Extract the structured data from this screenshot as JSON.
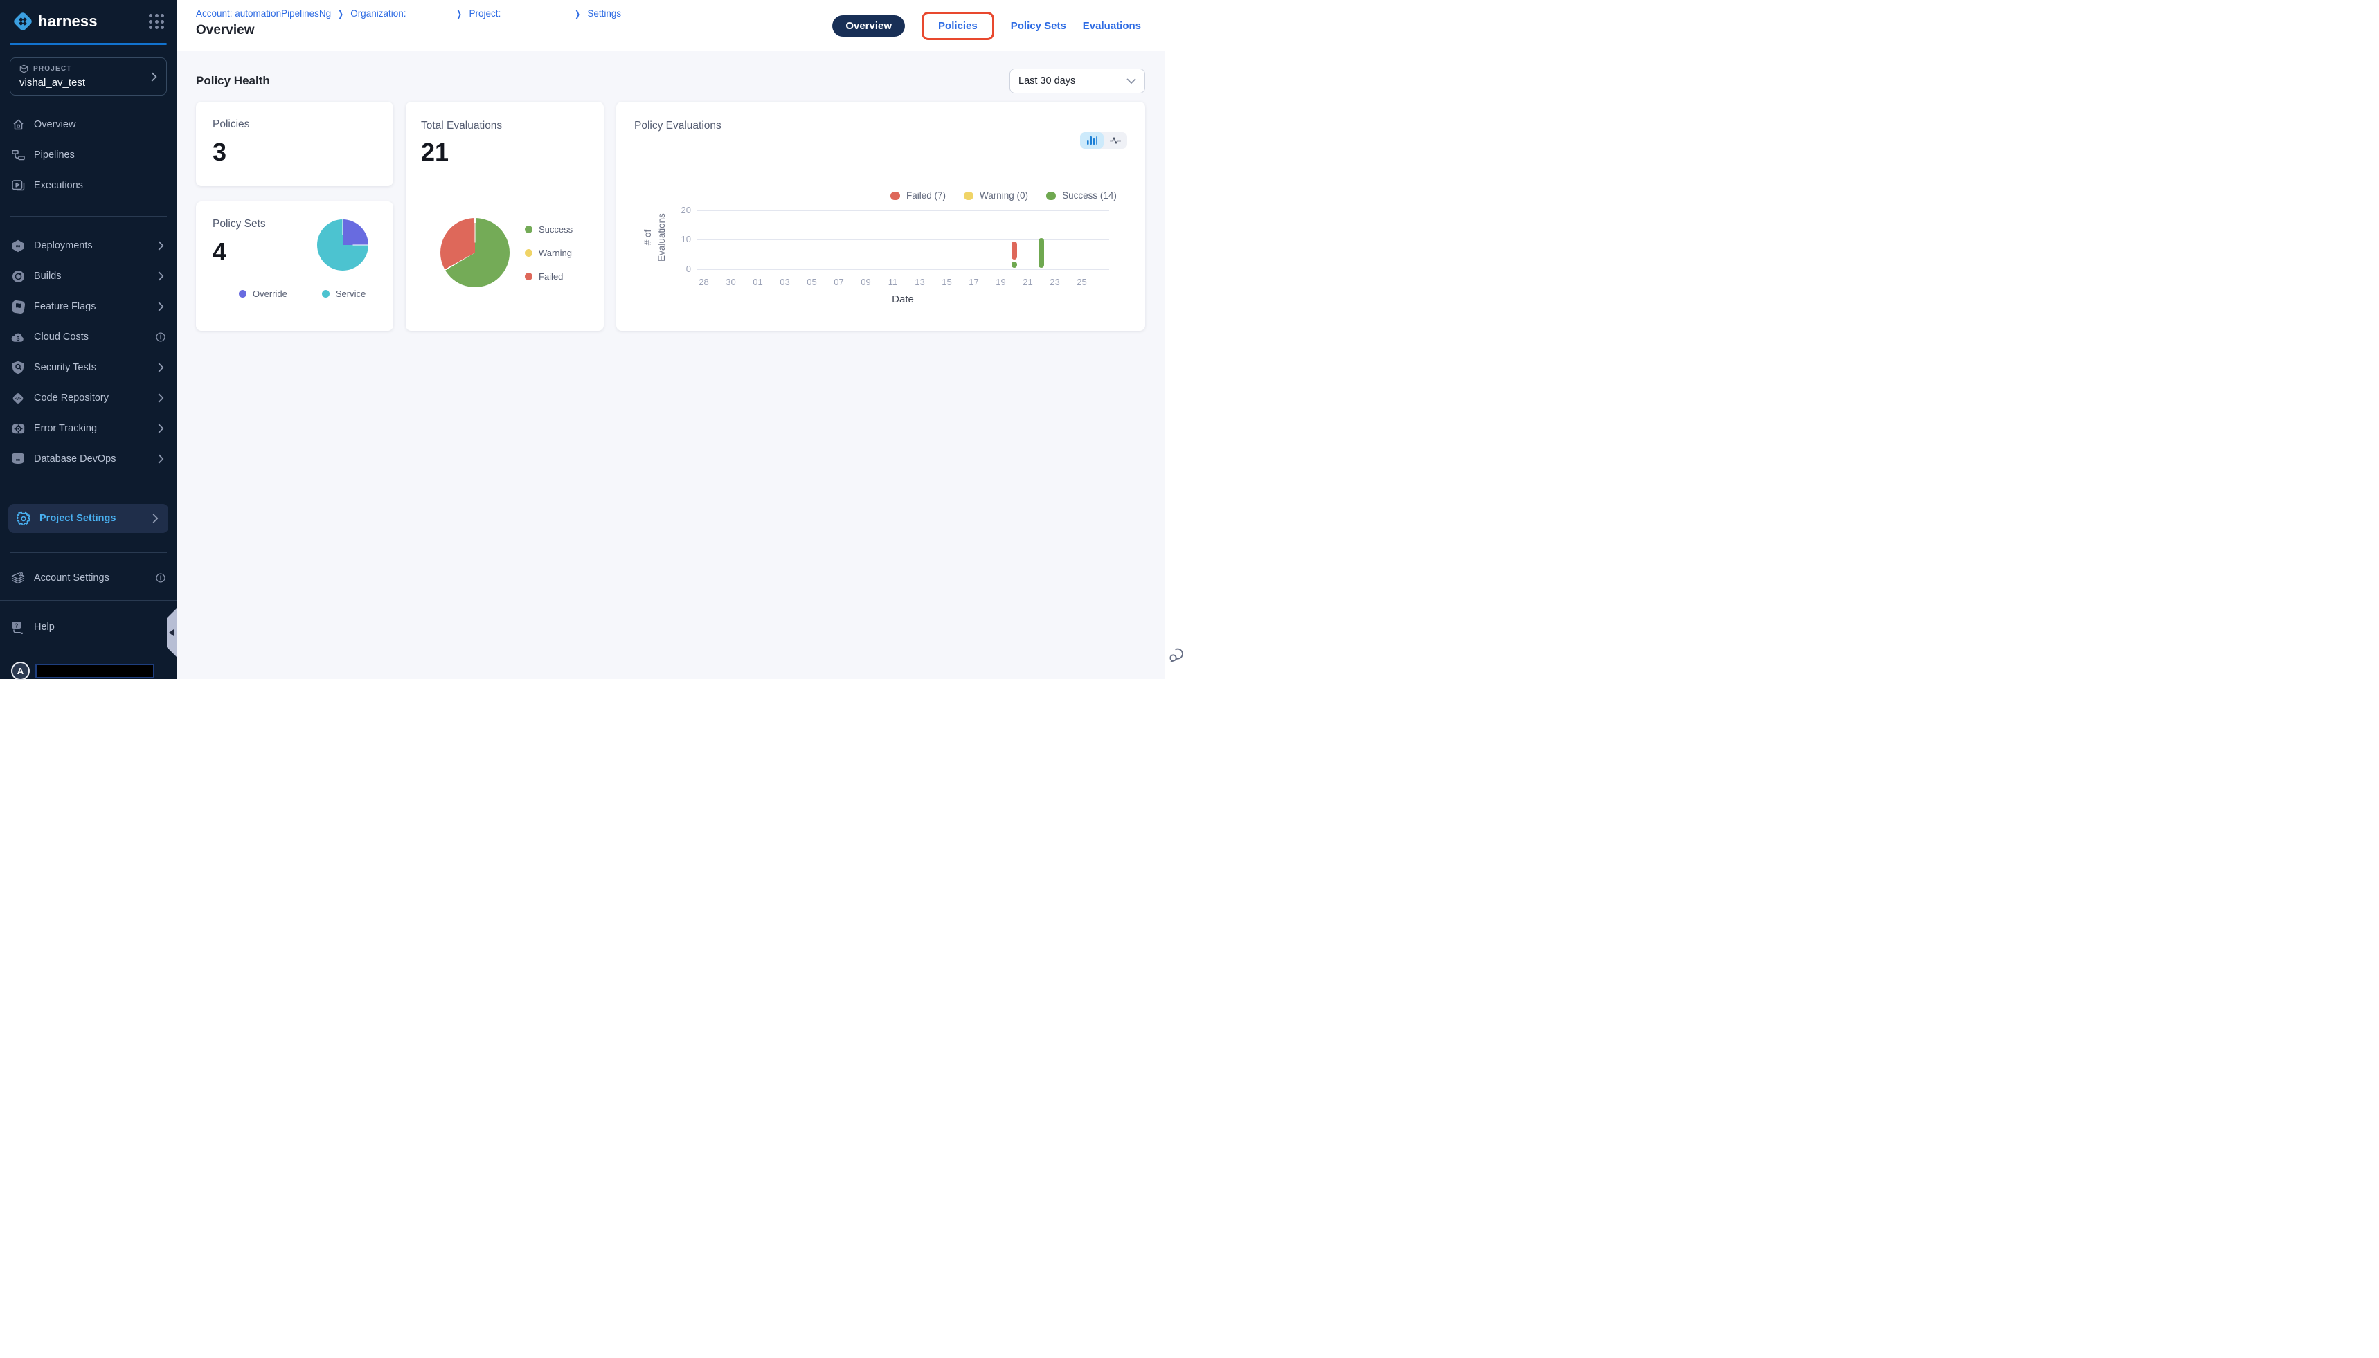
{
  "sidebar": {
    "logo_text": "harness",
    "project_selector": {
      "label": "PROJECT",
      "value": "vishal_av_test"
    },
    "nav_primary": [
      {
        "label": "Overview",
        "icon": "home"
      },
      {
        "label": "Pipelines",
        "icon": "pipelines"
      },
      {
        "label": "Executions",
        "icon": "executions"
      }
    ],
    "nav_modules": [
      {
        "label": "Deployments",
        "icon": "deployments",
        "trailing": "chevron"
      },
      {
        "label": "Builds",
        "icon": "builds",
        "trailing": "chevron"
      },
      {
        "label": "Feature Flags",
        "icon": "feature-flags",
        "trailing": "chevron"
      },
      {
        "label": "Cloud Costs",
        "icon": "cloud-costs",
        "trailing": "info"
      },
      {
        "label": "Security Tests",
        "icon": "security-tests",
        "trailing": "chevron"
      },
      {
        "label": "Code Repository",
        "icon": "code-repository",
        "trailing": "chevron"
      },
      {
        "label": "Error Tracking",
        "icon": "error-tracking",
        "trailing": "chevron"
      },
      {
        "label": "Database DevOps",
        "icon": "database-devops",
        "trailing": "chevron"
      }
    ],
    "nav_project_settings": {
      "label": "Project Settings",
      "icon": "gear",
      "trailing": "chevron",
      "active": true
    },
    "nav_account_settings": {
      "label": "Account Settings",
      "icon": "layers",
      "trailing": "info"
    },
    "help_item": {
      "label": "Help",
      "icon": "help"
    },
    "avatar_letter": "A",
    "colors": {
      "background": "#0d1b2e",
      "active_text": "#49b1f2",
      "accent_underline": "#1273cf"
    }
  },
  "header": {
    "breadcrumbs": [
      {
        "label": "Account: automationPipelinesNg",
        "gap_after": 0
      },
      {
        "label": "Organization:",
        "gap_after": 1
      },
      {
        "label": "Project:",
        "gap_after": 2
      },
      {
        "label": "Settings",
        "gap_after": 0
      }
    ],
    "page_title": "Overview",
    "tabs": [
      {
        "label": "Overview",
        "active": true,
        "highlighted": false
      },
      {
        "label": "Policies",
        "active": false,
        "highlighted": true
      },
      {
        "label": "Policy Sets",
        "active": false,
        "highlighted": false
      },
      {
        "label": "Evaluations",
        "active": false,
        "highlighted": false
      }
    ],
    "highlight_color": "#e8482e",
    "link_color": "#2d6be3",
    "active_tab_bg": "#182f56"
  },
  "content": {
    "section_title": "Policy Health",
    "date_filter_value": "Last 30 days",
    "cards": {
      "policies": {
        "label": "Policies",
        "value": "3"
      },
      "total_evaluations": {
        "label": "Total Evaluations",
        "value": "21"
      },
      "policy_sets": {
        "label": "Policy Sets",
        "value": "4"
      },
      "policy_evaluations": {
        "title": "Policy Evaluations"
      }
    }
  },
  "chart_data": [
    {
      "id": "total_evaluations_pie",
      "type": "pie",
      "title": "Total Evaluations",
      "total": 21,
      "legend_position": "right",
      "slices": [
        {
          "label": "Success",
          "value": 14,
          "color": "#74ab57"
        },
        {
          "label": "Warning",
          "value": 0,
          "color": "#f0d467"
        },
        {
          "label": "Failed",
          "value": 7,
          "color": "#de685a"
        }
      ]
    },
    {
      "id": "policy_sets_pie",
      "type": "pie",
      "title": "Policy Sets",
      "total": 4,
      "legend_position": "bottom",
      "slices": [
        {
          "label": "Override",
          "value": 1,
          "color": "#686be0"
        },
        {
          "label": "Service",
          "value": 3,
          "color": "#4cc3d0"
        }
      ]
    },
    {
      "id": "policy_evaluations_bar",
      "type": "bar",
      "title": "Policy Evaluations",
      "xlabel": "Date",
      "ylabel": "# of Evaluations",
      "ylabel_lines": [
        "# of",
        "Evaluations"
      ],
      "ylim": [
        0,
        20
      ],
      "yticks": [
        0,
        10,
        20
      ],
      "grid": true,
      "categories": [
        "28",
        "30",
        "01",
        "03",
        "05",
        "07",
        "09",
        "11",
        "13",
        "15",
        "17",
        "19",
        "21",
        "23",
        "25"
      ],
      "legend": [
        {
          "label": "Failed (7)",
          "color": "#de685a"
        },
        {
          "label": "Warning (0)",
          "color": "#f0d467"
        },
        {
          "label": "Success (14)",
          "color": "#6fa850"
        }
      ],
      "bars": [
        {
          "date": "20",
          "x_index": 11.5,
          "segments": [
            {
              "name": "Success",
              "value": 2,
              "color": "#6fa850",
              "draw_from": 0.4,
              "draw_to": 2.5
            },
            {
              "name": "Failed",
              "value": 7,
              "color": "#de685a",
              "draw_from": 3.2,
              "draw_to": 9.4
            }
          ]
        },
        {
          "date": "22",
          "x_index": 12.5,
          "segments": [
            {
              "name": "Success",
              "value": 12,
              "color": "#6fa850",
              "draw_from": 0.4,
              "draw_to": 10.5
            }
          ]
        }
      ]
    }
  ]
}
